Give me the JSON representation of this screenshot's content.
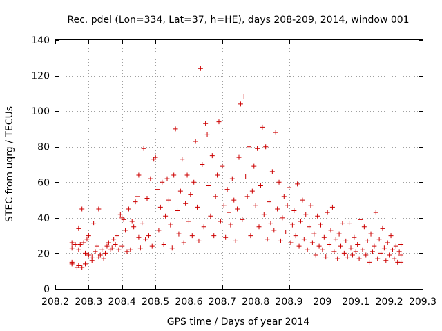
{
  "chart_data": {
    "type": "scatter",
    "title": "Rec. pdel (Lon=334, Lat=37, h=HE), days 208-209, 2014, window 001",
    "xlabel": "GPS time / Days of year 2014",
    "ylabel": "STEC from uqrg / TECUs",
    "xlim": [
      208.2,
      209.3
    ],
    "ylim": [
      0,
      140
    ],
    "grid": true,
    "x_ticks": [
      208.2,
      208.3,
      208.4,
      208.5,
      208.6,
      208.7,
      208.8,
      208.9,
      209,
      209.1,
      209.2,
      209.3
    ],
    "x_tick_labels": [
      "208.2",
      "208.3",
      "208.4",
      "208.5",
      "208.6",
      "208.7",
      "208.8",
      "208.9",
      "209",
      "209.1",
      "209.2",
      "209.3"
    ],
    "y_ticks": [
      0,
      20,
      40,
      60,
      80,
      100,
      120,
      140
    ],
    "y_tick_labels": [
      "0",
      "20",
      "40",
      "60",
      "80",
      "100",
      "120",
      "140"
    ],
    "marker": "+",
    "color": "#cc0000",
    "series": [
      {
        "name": "STEC",
        "points": [
          [
            208.25,
            15
          ],
          [
            208.25,
            14
          ],
          [
            208.25,
            23
          ],
          [
            208.25,
            26
          ],
          [
            208.26,
            25
          ],
          [
            208.265,
            12
          ],
          [
            208.27,
            13
          ],
          [
            208.27,
            22
          ],
          [
            208.27,
            34
          ],
          [
            208.275,
            25
          ],
          [
            208.28,
            45
          ],
          [
            208.28,
            12
          ],
          [
            208.285,
            26
          ],
          [
            208.29,
            14
          ],
          [
            208.29,
            20
          ],
          [
            208.295,
            28
          ],
          [
            208.3,
            30
          ],
          [
            208.3,
            19
          ],
          [
            208.31,
            18
          ],
          [
            208.31,
            16
          ],
          [
            208.315,
            37
          ],
          [
            208.32,
            21
          ],
          [
            208.325,
            24
          ],
          [
            208.33,
            45
          ],
          [
            208.33,
            18
          ],
          [
            208.335,
            19
          ],
          [
            208.34,
            22
          ],
          [
            208.345,
            17
          ],
          [
            208.35,
            20
          ],
          [
            208.355,
            24
          ],
          [
            208.36,
            26
          ],
          [
            208.365,
            22
          ],
          [
            208.37,
            23
          ],
          [
            208.375,
            28
          ],
          [
            208.38,
            25
          ],
          [
            208.385,
            30
          ],
          [
            208.39,
            22
          ],
          [
            208.395,
            42
          ],
          [
            208.4,
            40
          ],
          [
            208.4,
            24
          ],
          [
            208.405,
            39
          ],
          [
            208.41,
            33
          ],
          [
            208.415,
            21
          ],
          [
            208.42,
            45
          ],
          [
            208.425,
            22
          ],
          [
            208.43,
            38
          ],
          [
            208.435,
            35
          ],
          [
            208.44,
            49
          ],
          [
            208.445,
            52
          ],
          [
            208.45,
            29
          ],
          [
            208.45,
            64
          ],
          [
            208.455,
            23
          ],
          [
            208.46,
            37
          ],
          [
            208.465,
            79
          ],
          [
            208.47,
            28
          ],
          [
            208.475,
            51
          ],
          [
            208.48,
            30
          ],
          [
            208.485,
            62
          ],
          [
            208.49,
            24
          ],
          [
            208.495,
            73
          ],
          [
            208.5,
            74
          ],
          [
            208.505,
            56
          ],
          [
            208.51,
            33
          ],
          [
            208.515,
            46
          ],
          [
            208.52,
            60
          ],
          [
            208.525,
            25
          ],
          [
            208.53,
            41
          ],
          [
            208.535,
            62
          ],
          [
            208.54,
            50
          ],
          [
            208.545,
            36
          ],
          [
            208.55,
            23
          ],
          [
            208.555,
            64
          ],
          [
            208.56,
            90
          ],
          [
            208.565,
            44
          ],
          [
            208.57,
            31
          ],
          [
            208.575,
            55
          ],
          [
            208.58,
            73
          ],
          [
            208.585,
            26
          ],
          [
            208.59,
            48
          ],
          [
            208.595,
            64
          ],
          [
            208.6,
            38
          ],
          [
            208.605,
            53
          ],
          [
            208.61,
            30
          ],
          [
            208.615,
            60
          ],
          [
            208.62,
            83
          ],
          [
            208.625,
            46
          ],
          [
            208.63,
            27
          ],
          [
            208.635,
            124
          ],
          [
            208.64,
            70
          ],
          [
            208.645,
            35
          ],
          [
            208.65,
            93
          ],
          [
            208.655,
            87
          ],
          [
            208.66,
            58
          ],
          [
            208.665,
            41
          ],
          [
            208.67,
            75
          ],
          [
            208.675,
            30
          ],
          [
            208.68,
            52
          ],
          [
            208.685,
            64
          ],
          [
            208.69,
            94
          ],
          [
            208.695,
            38
          ],
          [
            208.7,
            69
          ],
          [
            208.705,
            47
          ],
          [
            208.71,
            29
          ],
          [
            208.715,
            56
          ],
          [
            208.72,
            43
          ],
          [
            208.725,
            36
          ],
          [
            208.73,
            62
          ],
          [
            208.735,
            50
          ],
          [
            208.74,
            27
          ],
          [
            208.745,
            45
          ],
          [
            208.75,
            74
          ],
          [
            208.755,
            104
          ],
          [
            208.76,
            39
          ],
          [
            208.765,
            108
          ],
          [
            208.77,
            63
          ],
          [
            208.775,
            52
          ],
          [
            208.78,
            80
          ],
          [
            208.785,
            30
          ],
          [
            208.79,
            55
          ],
          [
            208.795,
            69
          ],
          [
            208.8,
            47
          ],
          [
            208.805,
            79
          ],
          [
            208.81,
            35
          ],
          [
            208.815,
            58
          ],
          [
            208.82,
            91
          ],
          [
            208.825,
            42
          ],
          [
            208.83,
            80
          ],
          [
            208.835,
            28
          ],
          [
            208.84,
            49
          ],
          [
            208.845,
            37
          ],
          [
            208.85,
            66
          ],
          [
            208.855,
            33
          ],
          [
            208.86,
            88
          ],
          [
            208.865,
            45
          ],
          [
            208.87,
            60
          ],
          [
            208.875,
            27
          ],
          [
            208.88,
            40
          ],
          [
            208.885,
            52
          ],
          [
            208.89,
            32
          ],
          [
            208.895,
            47
          ],
          [
            208.9,
            57
          ],
          [
            208.905,
            26
          ],
          [
            208.91,
            36
          ],
          [
            208.915,
            44
          ],
          [
            208.92,
            30
          ],
          [
            208.925,
            59
          ],
          [
            208.93,
            24
          ],
          [
            208.935,
            38
          ],
          [
            208.94,
            50
          ],
          [
            208.945,
            28
          ],
          [
            208.95,
            42
          ],
          [
            208.955,
            22
          ],
          [
            208.96,
            35
          ],
          [
            208.965,
            47
          ],
          [
            208.97,
            26
          ],
          [
            208.975,
            31
          ],
          [
            208.98,
            19
          ],
          [
            208.985,
            41
          ],
          [
            208.99,
            24
          ],
          [
            208.995,
            36
          ],
          [
            209.0,
            22
          ],
          [
            209.005,
            29
          ],
          [
            209.01,
            18
          ],
          [
            209.015,
            43
          ],
          [
            209.02,
            25
          ],
          [
            209.025,
            33
          ],
          [
            209.03,
            46
          ],
          [
            209.035,
            21
          ],
          [
            209.04,
            28
          ],
          [
            209.045,
            17
          ],
          [
            209.05,
            31
          ],
          [
            209.055,
            24
          ],
          [
            209.06,
            37
          ],
          [
            209.065,
            20
          ],
          [
            209.07,
            27
          ],
          [
            209.075,
            18
          ],
          [
            209.08,
            37
          ],
          [
            209.085,
            23
          ],
          [
            209.09,
            19
          ],
          [
            209.095,
            29
          ],
          [
            209.1,
            21
          ],
          [
            209.105,
            25
          ],
          [
            209.11,
            17
          ],
          [
            209.115,
            39
          ],
          [
            209.12,
            22
          ],
          [
            209.125,
            35
          ],
          [
            209.13,
            19
          ],
          [
            209.135,
            27
          ],
          [
            209.14,
            15
          ],
          [
            209.145,
            31
          ],
          [
            209.15,
            21
          ],
          [
            209.155,
            24
          ],
          [
            209.16,
            43
          ],
          [
            209.165,
            17
          ],
          [
            209.17,
            28
          ],
          [
            209.175,
            20
          ],
          [
            209.18,
            34
          ],
          [
            209.185,
            23
          ],
          [
            209.19,
            16
          ],
          [
            209.195,
            26
          ],
          [
            209.2,
            19
          ],
          [
            209.205,
            30
          ],
          [
            209.21,
            22
          ],
          [
            209.215,
            17
          ],
          [
            209.22,
            24
          ],
          [
            209.225,
            15
          ],
          [
            209.23,
            21
          ],
          [
            209.235,
            25
          ],
          [
            209.235,
            15
          ],
          [
            209.235,
            19
          ]
        ]
      }
    ]
  }
}
